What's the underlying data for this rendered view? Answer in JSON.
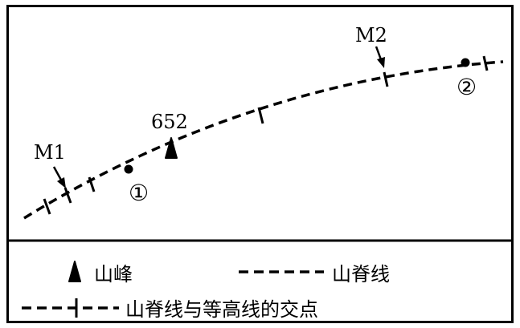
{
  "map": {
    "peak_label": "652",
    "point_labels": {
      "m1": "M1",
      "m2": "M2",
      "p1": "①",
      "p2": "②"
    }
  },
  "legend": {
    "peak": "山峰",
    "ridge_line": "山脊线",
    "intersection": "山脊线与等高线的交点"
  },
  "colors": {
    "stroke": "#000000",
    "background": "#ffffff"
  }
}
